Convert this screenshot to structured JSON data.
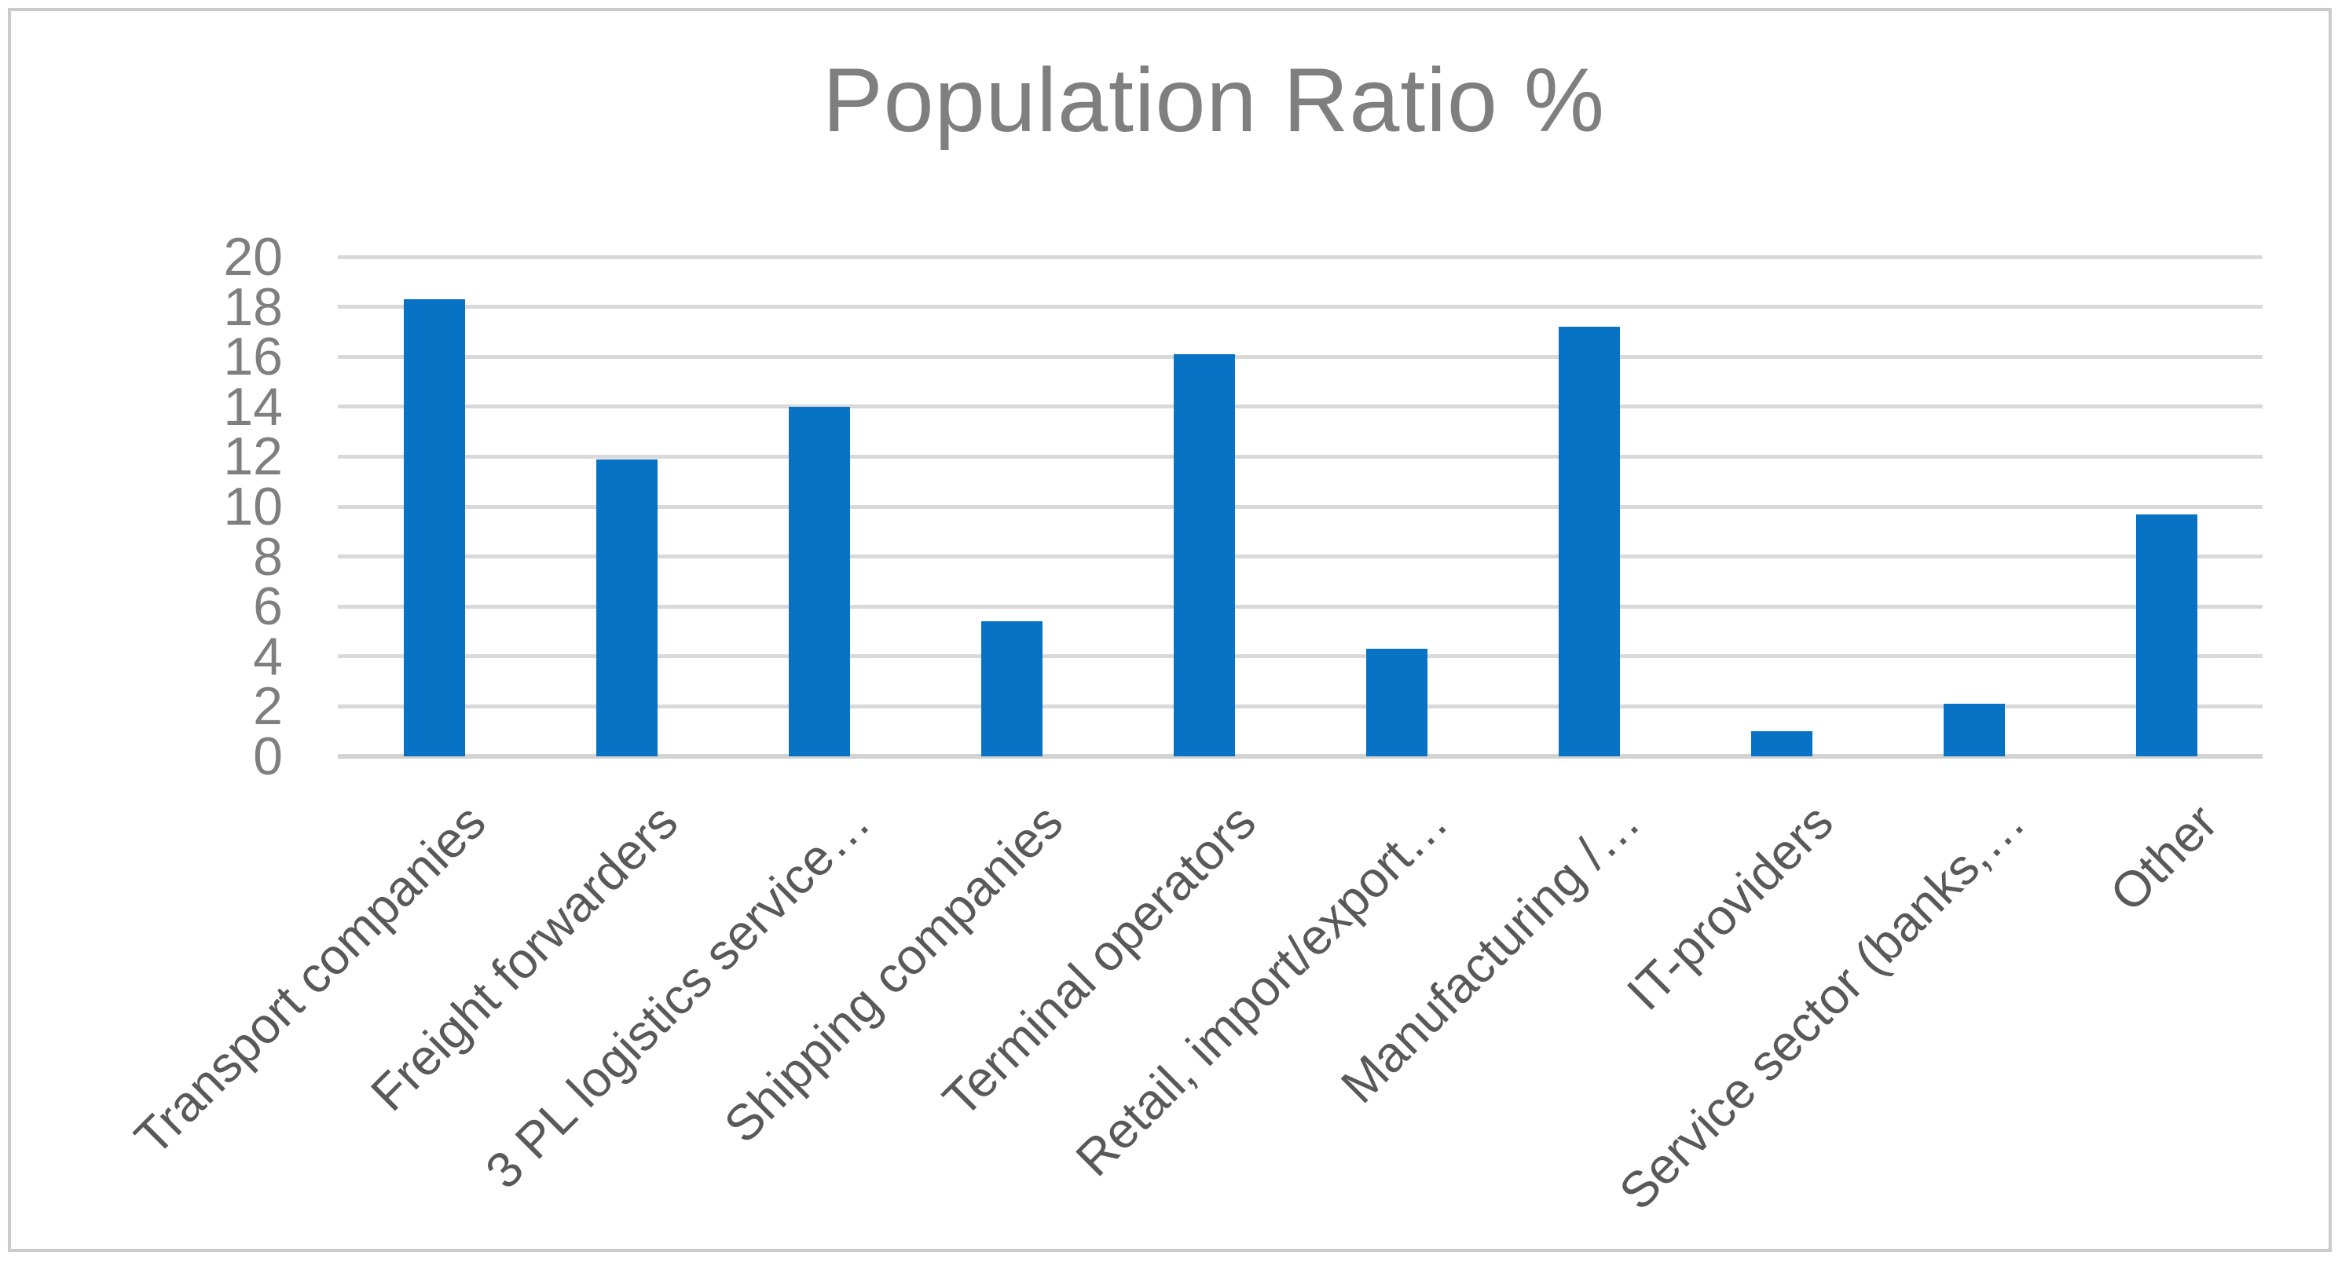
{
  "chart_data": {
    "type": "bar",
    "title": "Population Ratio %",
    "xlabel": "",
    "ylabel": "",
    "categories": [
      "Transport companies",
      "Freight forwarders",
      "3 PL logistics service…",
      "Shipping companies",
      "Terminal operators",
      "Retail, import/export…",
      "Manufacturing /…",
      "IT-providers",
      "Service sector (banks,…",
      "Other"
    ],
    "values": [
      18.3,
      11.9,
      14.0,
      5.4,
      16.1,
      4.3,
      17.2,
      1.0,
      2.1,
      9.7
    ],
    "ylim": [
      0,
      20
    ],
    "yticks": [
      0,
      2,
      4,
      6,
      8,
      10,
      12,
      14,
      16,
      18,
      20
    ],
    "grid": true,
    "legend": false,
    "bar_color": "#0873c5",
    "title_color": "#7f7f7f",
    "tick_label_color": "#7f7f7f",
    "category_label_color": "#595959",
    "gridline_color": "#d9d9d9",
    "axis_line_color": "#d3d3d3"
  }
}
